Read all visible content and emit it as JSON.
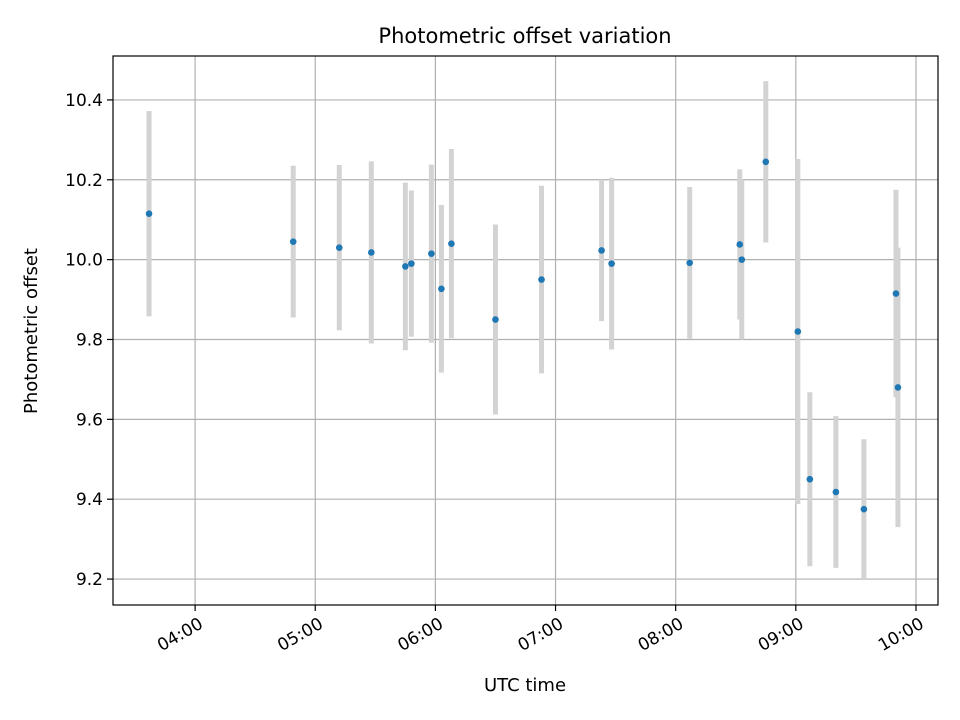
{
  "chart_data": {
    "type": "scatter",
    "title": "Photometric offset variation",
    "xlabel": "UTC time",
    "ylabel": "Photometric offset",
    "x_tick_labels": [
      "04:00",
      "05:00",
      "06:00",
      "07:00",
      "08:00",
      "09:00",
      "10:00"
    ],
    "x_ticks_minutes": [
      240,
      300,
      360,
      420,
      480,
      540,
      600
    ],
    "y_tick_labels": [
      "9.2",
      "9.4",
      "9.6",
      "9.8",
      "10.0",
      "10.2",
      "10.4"
    ],
    "y_ticks": [
      9.2,
      9.4,
      9.6,
      9.8,
      10.0,
      10.2,
      10.4
    ],
    "xlim": [
      "03:19",
      "10:11"
    ],
    "ylim": [
      9.135,
      10.51
    ],
    "grid": true,
    "marker_color": "#1f77b4",
    "errorbar_color": "#d3d3d3",
    "points": [
      {
        "t": "03:37",
        "y": 10.115,
        "err": 0.257
      },
      {
        "t": "04:49",
        "y": 10.045,
        "err": 0.19
      },
      {
        "t": "05:12",
        "y": 10.03,
        "err": 0.207
      },
      {
        "t": "05:28",
        "y": 10.018,
        "err": 0.228
      },
      {
        "t": "05:45",
        "y": 9.983,
        "err": 0.21
      },
      {
        "t": "05:48",
        "y": 9.99,
        "err": 0.183
      },
      {
        "t": "05:58",
        "y": 10.015,
        "err": 0.223
      },
      {
        "t": "06:03",
        "y": 9.927,
        "err": 0.21
      },
      {
        "t": "06:08",
        "y": 10.04,
        "err": 0.237
      },
      {
        "t": "06:30",
        "y": 9.85,
        "err": 0.238
      },
      {
        "t": "06:53",
        "y": 9.95,
        "err": 0.235
      },
      {
        "t": "07:23",
        "y": 10.023,
        "err": 0.177
      },
      {
        "t": "07:28",
        "y": 9.99,
        "err": 0.215
      },
      {
        "t": "08:07",
        "y": 9.992,
        "err": 0.19
      },
      {
        "t": "08:32",
        "y": 10.038,
        "err": 0.188
      },
      {
        "t": "08:33",
        "y": 10.0,
        "err": 0.2
      },
      {
        "t": "08:45",
        "y": 10.245,
        "err": 0.202
      },
      {
        "t": "09:01",
        "y": 9.82,
        "err": 0.432
      },
      {
        "t": "09:07",
        "y": 9.45,
        "err": 0.218
      },
      {
        "t": "09:20",
        "y": 9.418,
        "err": 0.19
      },
      {
        "t": "09:34",
        "y": 9.375,
        "err": 0.175
      },
      {
        "t": "09:50",
        "y": 9.915,
        "err": 0.26
      },
      {
        "t": "09:51",
        "y": 9.68,
        "err": 0.35
      }
    ]
  }
}
